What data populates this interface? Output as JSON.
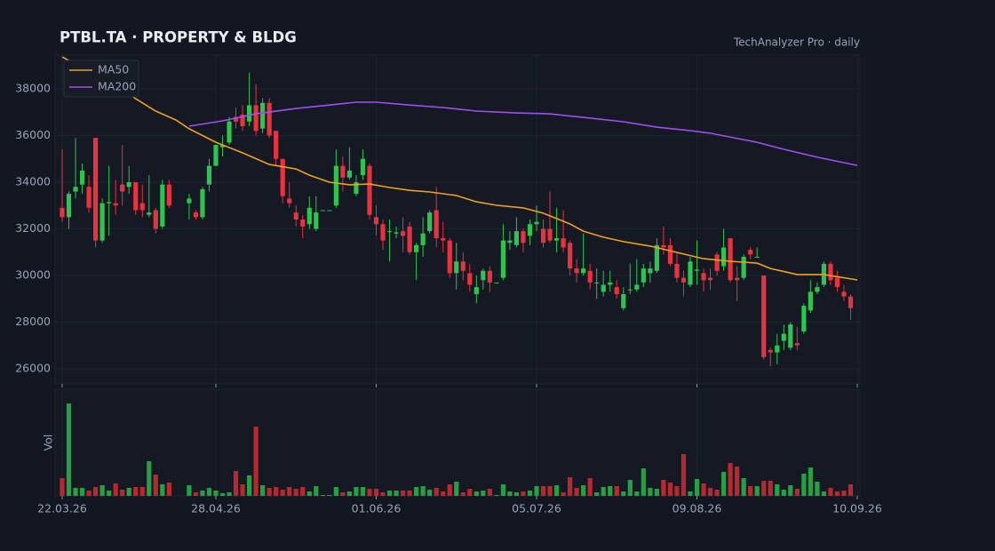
{
  "chart_data": {
    "type": "candlestick",
    "title": "PTBL.TA  ·  PROPERTY & BLDG",
    "subtitle": "TechAnalyzer Pro · daily",
    "grid": true,
    "legend": "upper left",
    "up_color": "#2fc44f",
    "down_color": "#e8323f",
    "xlim": [
      0,
      119
    ],
    "xticks": [
      {
        "value": 0,
        "label": "22.03.26"
      },
      {
        "value": 23,
        "label": "28.04.26"
      },
      {
        "value": 47,
        "label": "01.06.26"
      },
      {
        "value": 71,
        "label": "05.07.26"
      },
      {
        "value": 95,
        "label": "09.08.26"
      },
      {
        "value": 119,
        "label": "10.09.26"
      }
    ],
    "ylim": [
      25350,
      39450
    ],
    "yticks": [
      26000,
      28000,
      30000,
      32000,
      34000,
      36000,
      38000
    ],
    "open": [
      32900,
      32500,
      33600,
      33900,
      33800,
      35900,
      31500,
      33100,
      33100,
      33900,
      33800,
      34000,
      33100,
      32600,
      32800,
      32100,
      33900,
      null,
      null,
      33100,
      32700,
      32500,
      33900,
      34700,
      35500,
      35700,
      36800,
      36900,
      36600,
      37300,
      36300,
      37400,
      36200,
      35000,
      33300,
      32700,
      32400,
      32200,
      32000,
      32800,
      32800,
      33000,
      34700,
      34200,
      33500,
      34300,
      34700,
      32500,
      32200,
      31900,
      31800,
      31900,
      32100,
      31000,
      31300,
      31900,
      32800,
      31600,
      31500,
      30100,
      30600,
      30100,
      29200,
      29800,
      30200,
      29700,
      29900,
      31400,
      31300,
      31900,
      31700,
      32200,
      32000,
      32000,
      31500,
      31600,
      31400,
      30300,
      30100,
      30200,
      29700,
      29300,
      29600,
      29500,
      28600,
      29400,
      29400,
      29700,
      30100,
      30200,
      31300,
      31300,
      30500,
      29900,
      29600,
      30200,
      30100,
      29900,
      30900,
      30400,
      31600,
      29900,
      29900,
      31100,
      30800,
      30000,
      26800,
      26700,
      27200,
      26900,
      27100,
      27600,
      28500,
      29300,
      29600,
      30500,
      29900,
      29300,
      29100
    ],
    "high": [
      35400,
      33600,
      35900,
      34800,
      34300,
      35900,
      33300,
      34700,
      34100,
      35600,
      34700,
      34000,
      33900,
      34300,
      32900,
      34100,
      34100,
      null,
      null,
      33500,
      32800,
      33800,
      35000,
      35600,
      36000,
      36800,
      37200,
      37300,
      38700,
      38200,
      37600,
      37600,
      36200,
      35000,
      34000,
      33000,
      32600,
      33400,
      33400,
      32800,
      32800,
      35400,
      35100,
      35500,
      34300,
      35400,
      34800,
      33000,
      32400,
      32400,
      32100,
      32500,
      32300,
      31400,
      32500,
      32800,
      33800,
      32300,
      31600,
      31400,
      31000,
      30500,
      30000,
      30300,
      30400,
      29700,
      32200,
      31900,
      32500,
      32000,
      32400,
      33000,
      32400,
      33600,
      32900,
      32800,
      31500,
      30700,
      31800,
      30500,
      30300,
      30200,
      30200,
      29800,
      29500,
      30500,
      30700,
      30500,
      30600,
      31600,
      32100,
      31600,
      31000,
      30200,
      30800,
      31500,
      30300,
      30300,
      31000,
      32000,
      31600,
      30400,
      30900,
      31200,
      31200,
      30000,
      26900,
      27500,
      27900,
      28000,
      27800,
      28800,
      29800,
      29700,
      30600,
      30600,
      30200,
      29600,
      29200
    ],
    "low": [
      32300,
      32000,
      33300,
      33500,
      32700,
      31200,
      31400,
      31700,
      32600,
      33000,
      33500,
      32600,
      32500,
      32500,
      31800,
      32000,
      32900,
      null,
      null,
      32400,
      32400,
      32400,
      33600,
      34700,
      35100,
      35600,
      36300,
      36200,
      36400,
      36000,
      36100,
      35900,
      34700,
      33100,
      32900,
      32100,
      31600,
      32000,
      31900,
      32800,
      32800,
      32900,
      33600,
      34100,
      33400,
      34100,
      32400,
      31700,
      31100,
      30600,
      31600,
      31000,
      30900,
      29800,
      30800,
      31800,
      31200,
      31000,
      29900,
      29400,
      29800,
      29300,
      28800,
      29400,
      29300,
      29700,
      29800,
      31100,
      31200,
      31000,
      31300,
      31900,
      31200,
      31400,
      31000,
      31000,
      30000,
      29700,
      30000,
      29400,
      29000,
      29100,
      29300,
      29000,
      28500,
      29200,
      29300,
      29500,
      29700,
      30100,
      30900,
      30400,
      29700,
      29100,
      29500,
      29600,
      29300,
      29400,
      30000,
      30200,
      29700,
      28900,
      29800,
      30700,
      30800,
      26400,
      26100,
      26200,
      26800,
      26800,
      26800,
      27500,
      28400,
      29200,
      29500,
      29600,
      29300,
      28900,
      28100
    ],
    "close": [
      32500,
      33500,
      33800,
      34500,
      32900,
      31500,
      33100,
      33150,
      33000,
      33600,
      34000,
      32800,
      32800,
      32700,
      32000,
      33900,
      33000,
      null,
      null,
      33300,
      32500,
      33700,
      34700,
      35600,
      35600,
      36600,
      36600,
      36400,
      37300,
      36200,
      37400,
      36000,
      35000,
      33400,
      33100,
      32400,
      32100,
      32900,
      32700,
      32800,
      32800,
      34700,
      34200,
      34500,
      34000,
      35000,
      32600,
      32200,
      31500,
      31900,
      31850,
      31700,
      31000,
      31300,
      31800,
      32700,
      31600,
      31500,
      30100,
      30600,
      30200,
      29600,
      29500,
      30200,
      29700,
      29700,
      31500,
      31500,
      31900,
      31400,
      32200,
      32300,
      31400,
      31500,
      31600,
      31200,
      30300,
      30100,
      30300,
      29700,
      29700,
      29600,
      29700,
      29200,
      29200,
      29400,
      29600,
      30300,
      30300,
      31300,
      31200,
      30500,
      29900,
      29700,
      30600,
      30250,
      29800,
      29800,
      30200,
      31200,
      29800,
      29800,
      30800,
      30900,
      30800,
      26500,
      26700,
      27000,
      27500,
      27900,
      27000,
      28700,
      29300,
      29500,
      30500,
      29800,
      29500,
      29100,
      28600
    ],
    "volume": {
      "label": "Vol",
      "ylim": [
        0,
        120
      ],
      "values": [
        20,
        104,
        9,
        9,
        6,
        10,
        12,
        6,
        14,
        7,
        9,
        10,
        10,
        39,
        24,
        13,
        15,
        null,
        null,
        12,
        4,
        6,
        9,
        6,
        3,
        4,
        28,
        13,
        23,
        78,
        12,
        9,
        10,
        7,
        10,
        8,
        10,
        5,
        11,
        1,
        1,
        10,
        4,
        5,
        10,
        10,
        8,
        8,
        4,
        6,
        6,
        6,
        6,
        10,
        11,
        7,
        9,
        5,
        13,
        16,
        4,
        8,
        5,
        6,
        8,
        1,
        13,
        5,
        4,
        5,
        6,
        11,
        11,
        11,
        12,
        4,
        21,
        9,
        12,
        20,
        4,
        10,
        11,
        11,
        5,
        18,
        5,
        31,
        9,
        8,
        18,
        15,
        11,
        47,
        5,
        19,
        14,
        9,
        7,
        27,
        37,
        33,
        20,
        11,
        11,
        17,
        17,
        13,
        7,
        12,
        8,
        25,
        32,
        16,
        5,
        9,
        5,
        6,
        13
      ]
    },
    "series": [
      {
        "name": "MA50",
        "color": "#f0a020",
        "x": [
          0,
          4,
          8,
          11,
          14,
          17,
          19,
          23,
          27,
          31,
          35,
          37,
          40,
          43,
          46,
          49,
          52,
          55,
          59,
          62,
          65,
          69,
          72,
          76,
          78,
          81,
          84,
          88,
          92,
          96,
          100,
          104,
          106,
          110,
          114,
          119
        ],
        "values": [
          39370,
          38760,
          38190,
          37580,
          37050,
          36670,
          36290,
          35710,
          35260,
          34760,
          34570,
          34300,
          34000,
          33890,
          33920,
          33770,
          33650,
          33580,
          33430,
          33160,
          33010,
          32900,
          32670,
          32210,
          31900,
          31640,
          31450,
          31260,
          30990,
          30720,
          30610,
          30530,
          30300,
          30040,
          30040,
          29810
        ]
      },
      {
        "name": "MA200",
        "color": "#a24ff0",
        "x": [
          19,
          24,
          29,
          35,
          40,
          44,
          47,
          52,
          57,
          62,
          68,
          73,
          78,
          84,
          89,
          94,
          97,
          104,
          108,
          113,
          119
        ],
        "values": [
          36400,
          36630,
          36930,
          37160,
          37310,
          37430,
          37430,
          37310,
          37200,
          37050,
          36970,
          36930,
          36780,
          36590,
          36360,
          36210,
          36100,
          35710,
          35410,
          35070,
          34720
        ]
      }
    ]
  }
}
